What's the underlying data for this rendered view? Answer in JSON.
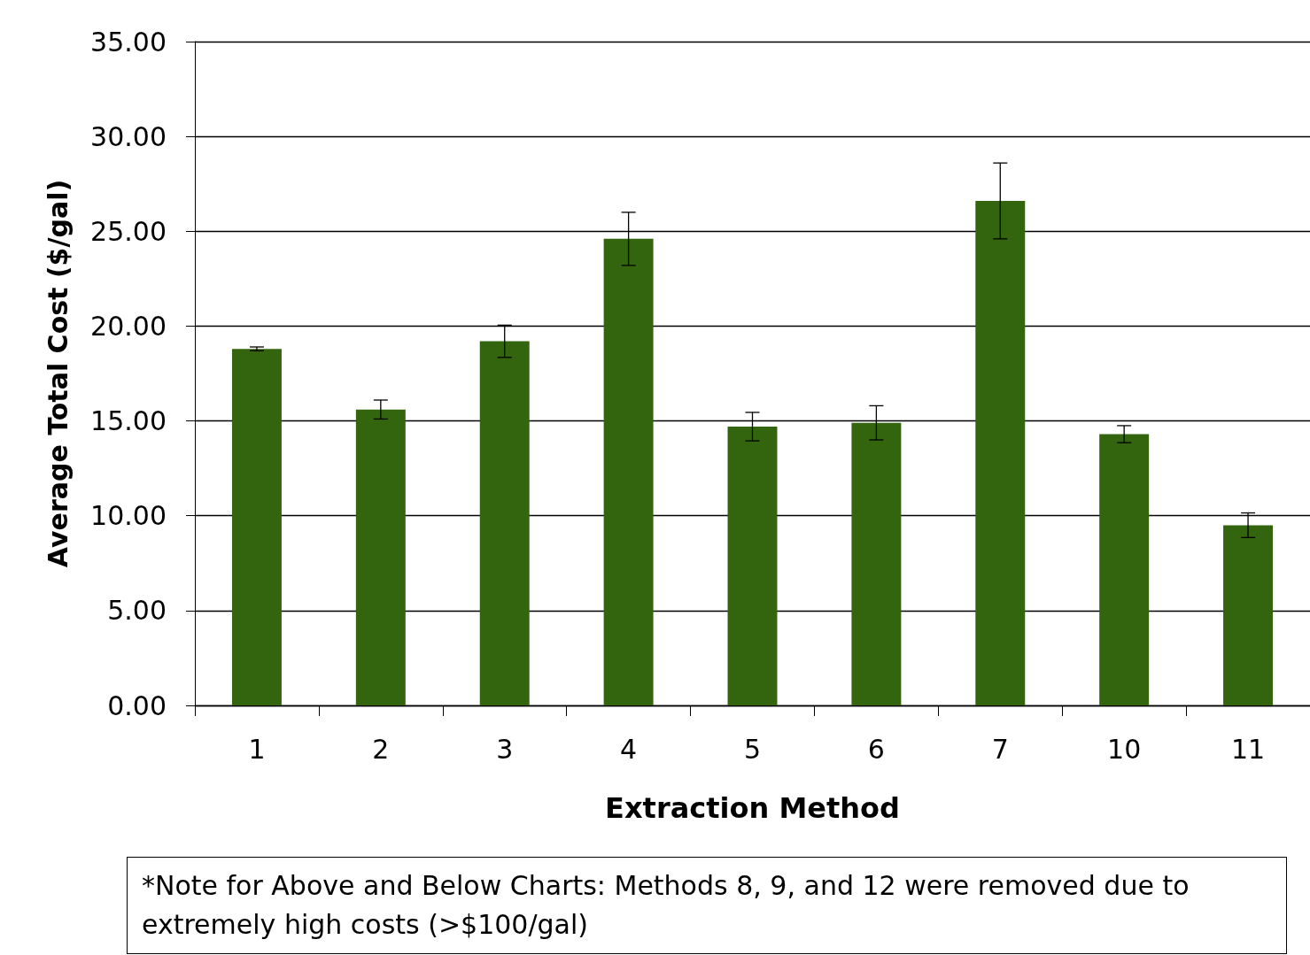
{
  "chart_data": {
    "type": "bar",
    "xlabel": "Extraction Method",
    "ylabel": "Average Total Cost ($/gal)",
    "categories": [
      "1",
      "2",
      "3",
      "4",
      "5",
      "6",
      "7",
      "10",
      "11"
    ],
    "values": [
      18.8,
      15.6,
      19.2,
      24.6,
      14.7,
      14.9,
      26.6,
      14.3,
      9.5
    ],
    "errors": [
      0.1,
      0.5,
      0.85,
      1.4,
      0.75,
      0.9,
      2.0,
      0.45,
      0.65
    ],
    "color": "#33640e",
    "ylim": [
      0,
      35
    ],
    "yticks": [
      {
        "value": 0,
        "label": "0.00"
      },
      {
        "value": 5,
        "label": "5.00"
      },
      {
        "value": 10,
        "label": "10.00"
      },
      {
        "value": 15,
        "label": "15.00"
      },
      {
        "value": 20,
        "label": "20.00"
      },
      {
        "value": 25,
        "label": "25.00"
      },
      {
        "value": 30,
        "label": "30.00"
      },
      {
        "value": 35,
        "label": "35.00"
      }
    ],
    "grid": "y",
    "annotations": [
      "*Note for Above and Below Charts: Methods 8, 9, and 12 were removed due to extremely high costs (>$100/gal)"
    ]
  }
}
